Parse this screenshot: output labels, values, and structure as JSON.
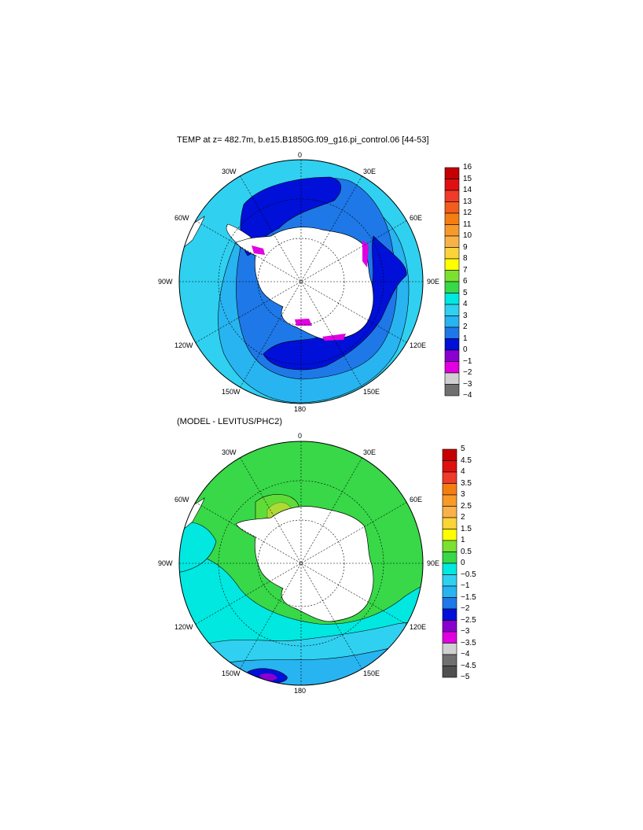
{
  "maps": [
    {
      "title": "TEMP at z= 482.7m, b.e15.B1850G.f09_g16.pi_control.06 [44-53]",
      "longitude_labels": [
        "0",
        "30E",
        "60E",
        "90E",
        "120E",
        "150E",
        "180",
        "150W",
        "120W",
        "90W",
        "60W",
        "30W"
      ],
      "colorbar_labels": [
        "16",
        "15",
        "14",
        "13",
        "12",
        "11",
        "10",
        "9",
        "8",
        "7",
        "6",
        "5",
        "4",
        "3",
        "2",
        "1",
        "0",
        "−1",
        "−2",
        "−3",
        "−4"
      ],
      "colorbar_colors": [
        "#c40000",
        "#e01010",
        "#f03a2a",
        "#f25c1c",
        "#f57e12",
        "#f79a2a",
        "#f9b24a",
        "#fbd33a",
        "#ffff00",
        "#7ce030",
        "#38d848",
        "#00e8e0",
        "#30d0f0",
        "#28b4f0",
        "#1e78e8",
        "#0010d8",
        "#8a00d0",
        "#e000e0",
        "#d0d0d0",
        "#707070"
      ]
    },
    {
      "title": "(MODEL - LEVITUS/PHC2)",
      "longitude_labels": [
        "0",
        "30E",
        "60E",
        "90E",
        "120E",
        "150E",
        "180",
        "150W",
        "120W",
        "90W",
        "60W",
        "30W"
      ],
      "colorbar_labels": [
        "5",
        "4.5",
        "4",
        "3.5",
        "3",
        "2.5",
        "2",
        "1.5",
        "1",
        "0.5",
        "0",
        "−0.5",
        "−1",
        "−1.5",
        "−2",
        "−2.5",
        "−3",
        "−3.5",
        "−4",
        "−4.5",
        "−5"
      ],
      "colorbar_colors": [
        "#c40000",
        "#e01010",
        "#f03a2a",
        "#f57e12",
        "#f79a2a",
        "#f9b24a",
        "#fbd33a",
        "#ffff00",
        "#7ce030",
        "#38d848",
        "#00e8e0",
        "#30d0f0",
        "#28b4f0",
        "#1e78e8",
        "#0010d8",
        "#8a00d0",
        "#e000e0",
        "#d0d0d0",
        "#707070",
        "#505050"
      ]
    }
  ]
}
